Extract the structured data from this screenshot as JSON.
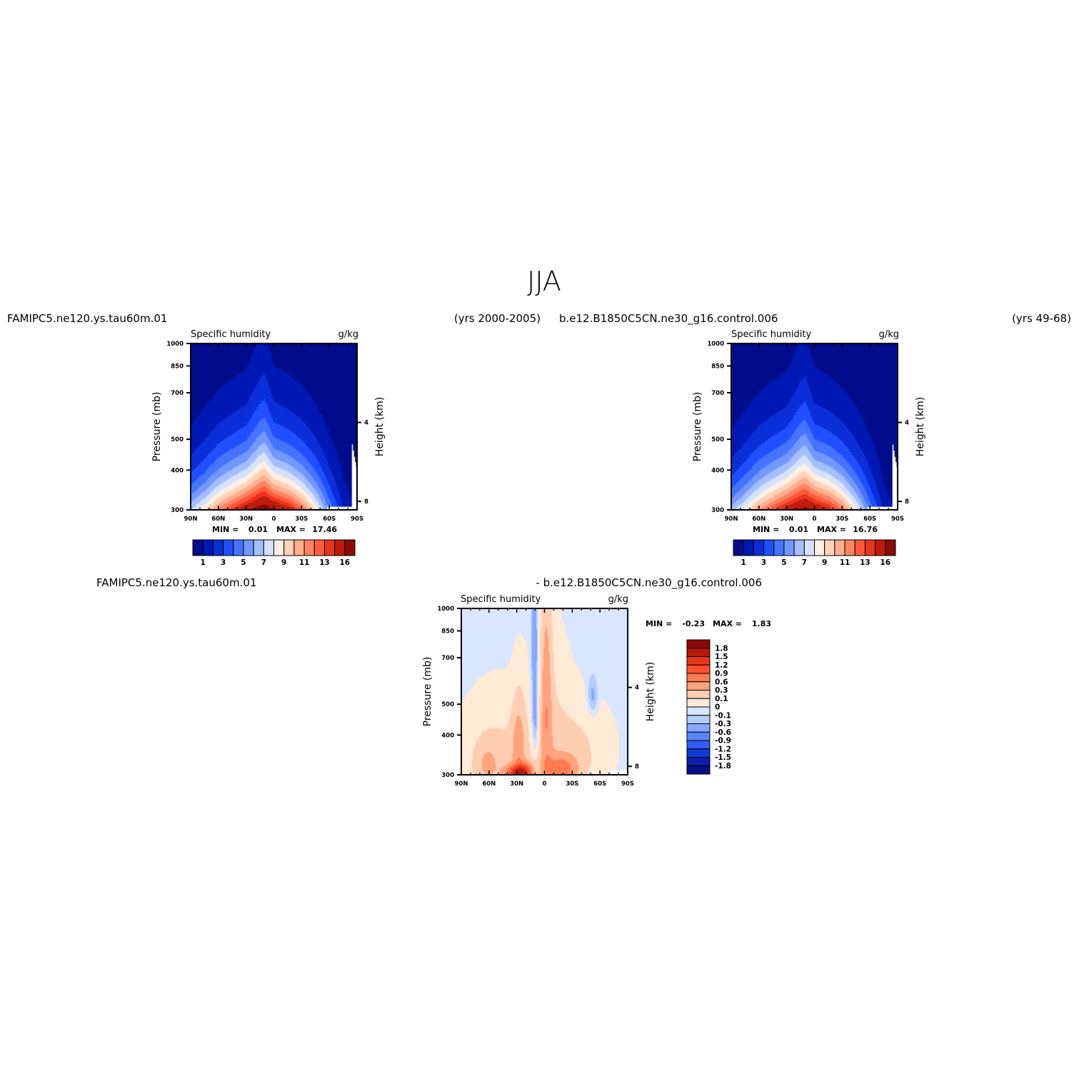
{
  "figure_title": "JJA",
  "panels": [
    {
      "case_left": "FAMIPC5.ne120.ys.tau60m.01",
      "case_right": "(yrs 2000-2005)",
      "variable": "Specific humidity",
      "units": "g/kg",
      "min_label": "MIN =",
      "min_value": "0.01",
      "max_label": "MAX =",
      "max_value": "17.46"
    },
    {
      "case_left": "b.e12.B1850C5CN.ne30_g16.control.006",
      "case_right": "(yrs 49-68)",
      "variable": "Specific humidity",
      "units": "g/kg",
      "min_label": "MIN =",
      "min_value": "0.01",
      "max_label": "MAX =",
      "max_value": "16.76"
    },
    {
      "case_left": "FAMIPC5.ne120.ys.tau60m.01",
      "case_right": "- b.e12.B1850C5CN.ne30_g16.control.006",
      "variable": "Specific humidity",
      "units": "g/kg",
      "min_label": "MIN =",
      "min_value": "-0.23",
      "max_label": "MAX =",
      "max_value": "1.83"
    }
  ],
  "chart_data": {
    "type": "heatmap",
    "x_ticks": [
      "90N",
      "60N",
      "30N",
      "0",
      "30S",
      "60S",
      "90S"
    ],
    "y_ticks": [
      "300",
      "400",
      "500",
      "700",
      "850",
      "1000"
    ],
    "y_tick_values": [
      300,
      400,
      500,
      700,
      850,
      1000
    ],
    "y_right_ticks": [
      "8",
      "4"
    ],
    "y_right_tick_values": [
      8,
      4
    ],
    "ylabel": "Pressure (mb)",
    "ylabel_right": "Height (km)",
    "xlim": [
      90,
      -90
    ],
    "ylim": [
      1000,
      300
    ],
    "y_scale": "log",
    "abs_colorbar": {
      "orientation": "horizontal",
      "labels": [
        "1",
        "3",
        "5",
        "7",
        "9",
        "11",
        "13",
        "16"
      ],
      "colors": [
        "#000c8b",
        "#0018b4",
        "#0a2fd8",
        "#1f4fff",
        "#4673ff",
        "#7298ff",
        "#a3bfff",
        "#d5e2ff",
        "#fff0e1",
        "#ffd2b8",
        "#ffae8e",
        "#ff8462",
        "#ff5b3a",
        "#e8361c",
        "#c11a0c",
        "#8b0a05"
      ]
    },
    "diff_colorbar": {
      "orientation": "vertical",
      "labels": [
        "1.8",
        "1.5",
        "1.2",
        "0.9",
        "0.6",
        "0.3",
        "0.1",
        "0",
        "-0.1",
        "-0.3",
        "-0.6",
        "-0.9",
        "-1.2",
        "-1.5",
        "-1.8"
      ],
      "colors": [
        "#8b0a05",
        "#b8180a",
        "#e8361c",
        "#ff4e2e",
        "#ff7a52",
        "#ffa37c",
        "#ffcdb1",
        "#ffead6",
        "#d8e6ff",
        "#b3ccff",
        "#86a9ff",
        "#5a84ff",
        "#2f5cf6",
        "#1238d6",
        "#0820a8",
        "#00108a"
      ]
    },
    "fields": [
      {
        "panel": "model",
        "surface_q_profile": [
          [
            90,
            7
          ],
          [
            75,
            9
          ],
          [
            60,
            11.5
          ],
          [
            45,
            13.5
          ],
          [
            30,
            15.5
          ],
          [
            15,
            17.2
          ],
          [
            10,
            17.46
          ],
          [
            0,
            16.5
          ],
          [
            -15,
            15
          ],
          [
            -30,
            12.5
          ],
          [
            -45,
            9
          ],
          [
            -60,
            5
          ],
          [
            -75,
            2
          ],
          [
            -90,
            0.8
          ]
        ],
        "scale_heights_km": [
          [
            90,
            2.2
          ],
          [
            60,
            2.5
          ],
          [
            30,
            2.6
          ],
          [
            15,
            3.1
          ],
          [
            10,
            3.2
          ],
          [
            0,
            2.6
          ],
          [
            -30,
            2.5
          ],
          [
            -60,
            2.4
          ],
          [
            -90,
            2.2
          ]
        ],
        "surface_mask_lat_range": [
          -57,
          -84
        ]
      },
      {
        "panel": "control",
        "surface_q_profile": [
          [
            90,
            6.5
          ],
          [
            75,
            8.5
          ],
          [
            60,
            11
          ],
          [
            45,
            13
          ],
          [
            30,
            15
          ],
          [
            15,
            16.5
          ],
          [
            10,
            16.76
          ],
          [
            0,
            16
          ],
          [
            -15,
            14.5
          ],
          [
            -30,
            12
          ],
          [
            -45,
            8.5
          ],
          [
            -60,
            4.8
          ],
          [
            -75,
            1.8
          ],
          [
            -90,
            0.7
          ]
        ],
        "scale_heights_km": [
          [
            90,
            2.2
          ],
          [
            60,
            2.5
          ],
          [
            30,
            2.6
          ],
          [
            15,
            3.1
          ],
          [
            10,
            3.2
          ],
          [
            0,
            2.6
          ],
          [
            -30,
            2.5
          ],
          [
            -60,
            2.4
          ],
          [
            -90,
            2.2
          ]
        ],
        "surface_mask_lat_range": [
          -57,
          -84
        ]
      },
      {
        "panel": "difference",
        "anomalies": [
          {
            "lat": 50,
            "p": 900,
            "sig_lat": 28,
            "sig_p": 220,
            "amp": 0.35
          },
          {
            "lat": 62,
            "p": 930,
            "sig_lat": 8,
            "sig_p": 90,
            "amp": 0.35
          },
          {
            "lat": 28,
            "p": 800,
            "sig_lat": 5,
            "sig_p": 180,
            "amp": 0.55
          },
          {
            "lat": 30,
            "p": 990,
            "sig_lat": 9,
            "sig_p": 40,
            "amp": 1.3
          },
          {
            "lat": 20,
            "p": 975,
            "sig_lat": 6,
            "sig_p": 45,
            "amp": 0.7
          },
          {
            "lat": -18,
            "p": 960,
            "sig_lat": 14,
            "sig_p": 70,
            "amp": 0.8
          },
          {
            "lat": -2,
            "p": 550,
            "sig_lat": 4.5,
            "sig_p": 300,
            "amp": 0.6
          },
          {
            "lat": 10,
            "p": 650,
            "sig_lat": 3.2,
            "sig_p": 180,
            "amp": -0.45
          },
          {
            "lat": 11,
            "p": 360,
            "sig_lat": 2.5,
            "sig_p": 80,
            "amp": -0.25
          },
          {
            "lat": -52,
            "p": 570,
            "sig_lat": 4,
            "sig_p": 60,
            "amp": -0.25
          },
          {
            "lat": -35,
            "p": 820,
            "sig_lat": 25,
            "sig_p": 170,
            "amp": 0.28
          },
          {
            "lat": -5,
            "p": 700,
            "sig_lat": 16,
            "sig_p": 260,
            "amp": 0.2
          }
        ]
      }
    ]
  }
}
